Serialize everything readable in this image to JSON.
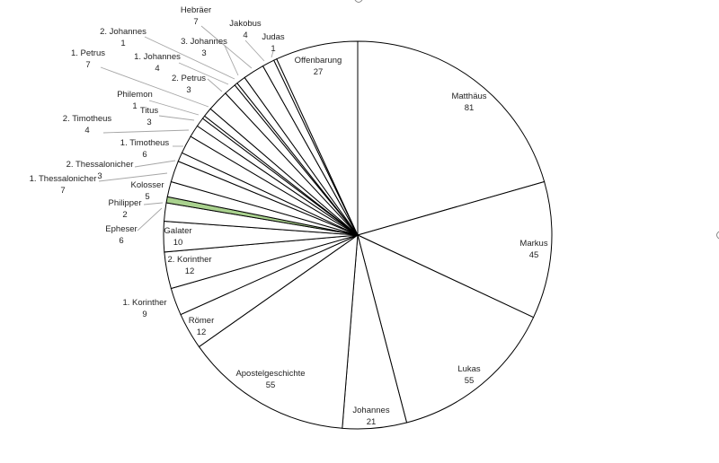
{
  "chart_data": {
    "type": "pie",
    "start": "top",
    "direction": "clockwise",
    "slices": [
      {
        "label": "Matthäus",
        "value": 81,
        "color": "#ffffff"
      },
      {
        "label": "Markus",
        "value": 45,
        "color": "#ffffff"
      },
      {
        "label": "Lukas",
        "value": 55,
        "color": "#ffffff"
      },
      {
        "label": "Johannes",
        "value": 21,
        "color": "#ffffff"
      },
      {
        "label": "Apostelgeschichte",
        "value": 55,
        "color": "#ffffff"
      },
      {
        "label": "Römer",
        "value": 12,
        "color": "#ffffff"
      },
      {
        "label": "1. Korinther",
        "value": 9,
        "color": "#ffffff"
      },
      {
        "label": "2. Korinther",
        "value": 12,
        "color": "#ffffff"
      },
      {
        "label": "Galater",
        "value": 10,
        "color": "#ffffff"
      },
      {
        "label": "Epheser",
        "value": 6,
        "color": "#ffffff"
      },
      {
        "label": "Philipper",
        "value": 2,
        "color": "#a9d18e"
      },
      {
        "label": "Kolosser",
        "value": 5,
        "color": "#ffffff"
      },
      {
        "label": "1. Thessalonicher",
        "value": 7,
        "color": "#ffffff"
      },
      {
        "label": "2. Thessalonicher",
        "value": 3,
        "color": "#ffffff"
      },
      {
        "label": "1. Timotheus",
        "value": 6,
        "color": "#ffffff"
      },
      {
        "label": "2. Timotheus",
        "value": 4,
        "color": "#ffffff"
      },
      {
        "label": "Titus",
        "value": 3,
        "color": "#ffffff"
      },
      {
        "label": "Philemon",
        "value": 1,
        "color": "#ffffff"
      },
      {
        "label": "2. Petrus",
        "value": 3,
        "color": "#ffffff"
      },
      {
        "label": "1. Petrus",
        "value": 7,
        "color": "#ffffff"
      },
      {
        "label": "1. Johannes",
        "value": 4,
        "color": "#ffffff"
      },
      {
        "label": "2. Johannes",
        "value": 1,
        "color": "#ffffff"
      },
      {
        "label": "3. Johannes",
        "value": 3,
        "color": "#ffffff"
      },
      {
        "label": "Hebräer",
        "value": 7,
        "color": "#ffffff"
      },
      {
        "label": "Jakobus",
        "value": 4,
        "color": "#ffffff"
      },
      {
        "label": "Judas",
        "value": 1,
        "color": "#ffffff"
      },
      {
        "label": "Offenbarung",
        "value": 27,
        "color": "#ffffff"
      }
    ]
  }
}
